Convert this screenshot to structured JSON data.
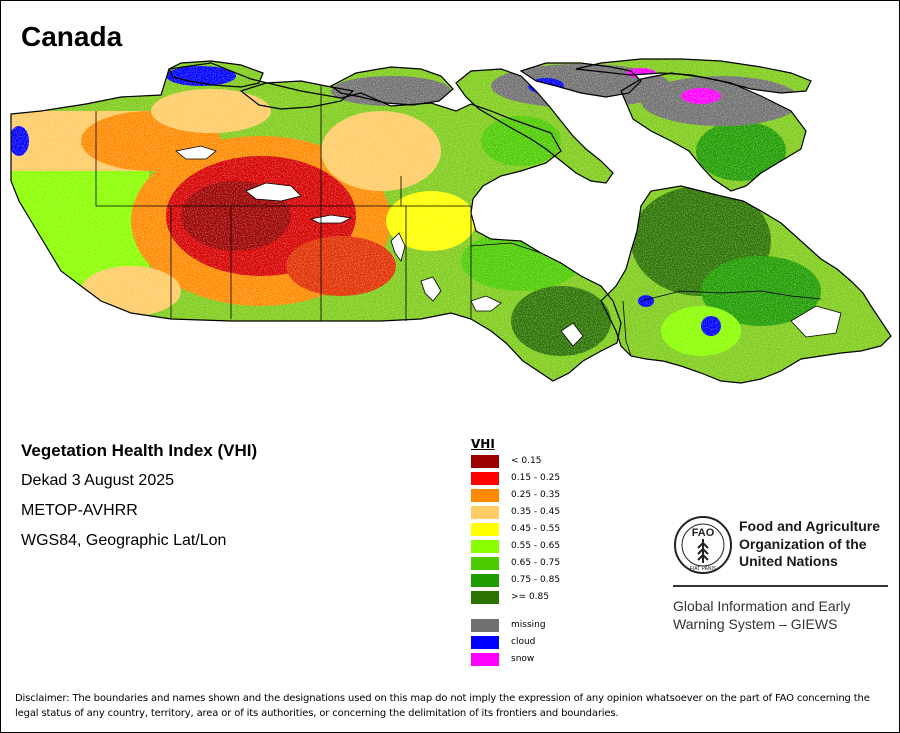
{
  "title": "Canada",
  "info": {
    "index_name": "Vegetation Health Index (VHI)",
    "period": "Dekad 3 August 2025",
    "sensor": "METOP-AVHRR",
    "projection": "WGS84, Geographic Lat/Lon"
  },
  "legend": {
    "title": "VHI",
    "classes": [
      {
        "label": "< 0.15",
        "color": "#9c0000"
      },
      {
        "label": "0.15 - 0.25",
        "color": "#ff0000"
      },
      {
        "label": "0.25 - 0.35",
        "color": "#ff8a00"
      },
      {
        "label": "0.35 - 0.45",
        "color": "#ffcc66"
      },
      {
        "label": "0.45 - 0.55",
        "color": "#ffff00"
      },
      {
        "label": "0.55 - 0.65",
        "color": "#8aff00"
      },
      {
        "label": "0.65 - 0.75",
        "color": "#4ccc00"
      },
      {
        "label": "0.75 - 0.85",
        "color": "#1f9c00"
      },
      {
        "label": ">= 0.85",
        "color": "#2b7300"
      }
    ],
    "other": [
      {
        "label": "missing",
        "color": "#707070"
      },
      {
        "label": "cloud",
        "color": "#0000ff"
      },
      {
        "label": "snow",
        "color": "#ff00ff"
      }
    ]
  },
  "logo": {
    "emblem_text": "FAO",
    "motto": "FIAT PANIS",
    "org_line1": "Food and Agriculture",
    "org_line2": "Organization of the",
    "org_line3": "United Nations",
    "system_line1": "Global Information and Early",
    "system_line2": "Warning System – GIEWS"
  },
  "disclaimer": "Disclaimer: The boundaries and names shown and the designations used on this map do not imply the expression of any opinion whatsoever on the part of FAO concerning the legal status of any country, territory, area or of its authorities, or concerning the delimitation of its frontiers and boundaries."
}
